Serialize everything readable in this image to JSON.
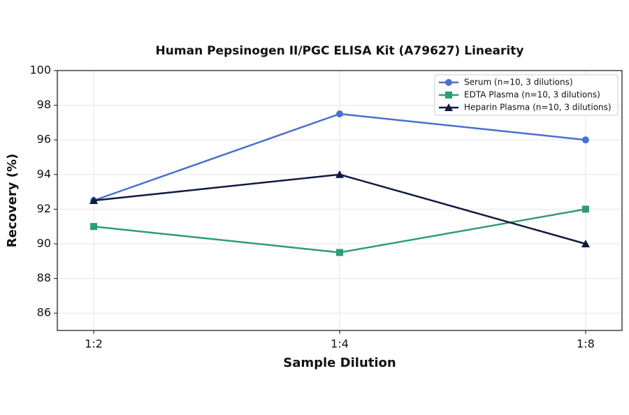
{
  "chart_data": {
    "type": "line",
    "title": "Human Pepsinogen II/PGC ELISA Kit (A79627) Linearity",
    "x_label": "Sample Dilution",
    "y_label": "Recovery (%)",
    "categories": [
      "1:2",
      "1:4",
      "1:8"
    ],
    "series": [
      {
        "name": "Serum (n=10, 3 dilutions)",
        "color": "#4a6fd0",
        "marker": "circle",
        "values": [
          92.5,
          97.5,
          96
        ]
      },
      {
        "name": "EDTA Plasma (n=10, 3 dilutions)",
        "color": "#2e9c78",
        "marker": "square",
        "values": [
          91,
          89.5,
          92
        ]
      },
      {
        "name": "Heparin Plasma (n=10, 3 dilutions)",
        "color": "#0f1a42",
        "marker": "triangle",
        "values": [
          92.5,
          94,
          90
        ]
      }
    ],
    "ylim": [
      85,
      100
    ],
    "yticks": [
      86,
      88,
      90,
      92,
      94,
      96,
      98,
      100
    ],
    "grid": true,
    "legend": "upper right"
  }
}
